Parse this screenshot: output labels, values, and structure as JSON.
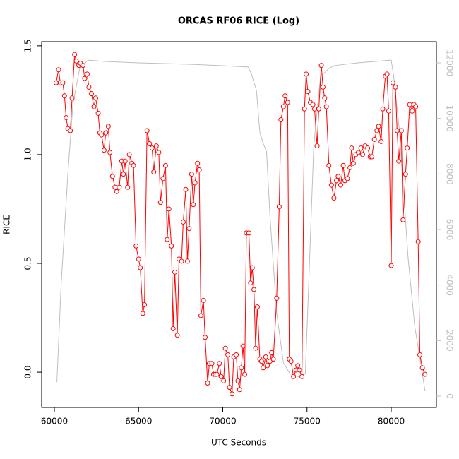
{
  "chart_data": {
    "type": "line",
    "title": "ORCAS RF06 RICE (Log)",
    "xlabel": "UTC Seconds",
    "ylabel": "RICE",
    "xlim": [
      59245,
      82683
    ],
    "ylim": [
      -0.162,
      1.519
    ],
    "y2lim": [
      -407,
      12763
    ],
    "xticks": [
      60000,
      65000,
      70000,
      75000,
      80000
    ],
    "yticks": [
      {
        "value": 0,
        "label": "0.0"
      },
      {
        "value": 0.5,
        "label": "0.5"
      },
      {
        "value": 1,
        "label": "1.0"
      },
      {
        "value": 1.5,
        "label": "1.5"
      }
    ],
    "y2ticks": [
      0,
      2000,
      4000,
      6000,
      8000,
      10000,
      12000
    ],
    "y2color": "#bebebe",
    "series": [
      {
        "color": "#ff0000",
        "markers": true,
        "x": [
          60100,
          60250,
          60350,
          60500,
          60600,
          60700,
          60800,
          60950,
          61050,
          61200,
          61300,
          61450,
          61550,
          61700,
          61800,
          61950,
          62050,
          62200,
          62350,
          62450,
          62600,
          62700,
          62800,
          62950,
          63050,
          63200,
          63300,
          63450,
          63600,
          63700,
          63850,
          64000,
          64100,
          64200,
          64350,
          64450,
          64600,
          64700,
          64850,
          65000,
          65100,
          65250,
          65350,
          65500,
          65650,
          65800,
          65900,
          66050,
          66200,
          66300,
          66450,
          66600,
          66700,
          66800,
          66950,
          67050,
          67150,
          67300,
          67400,
          67550,
          67650,
          67800,
          67900,
          68000,
          68150,
          68250,
          68350,
          68500,
          68600,
          68700,
          68850,
          68950,
          69100,
          69200,
          69350,
          69450,
          69550,
          69650,
          69800,
          69900,
          70050,
          70150,
          70300,
          70400,
          70550,
          70650,
          70800,
          70900,
          71000,
          71100,
          71200,
          71300,
          71400,
          71550,
          71650,
          71750,
          71850,
          71950,
          72050,
          72200,
          72300,
          72400,
          72550,
          72650,
          72800,
          72900,
          73000,
          73200,
          73350,
          73450,
          73600,
          73700,
          73850,
          73950,
          74050,
          74200,
          74350,
          74450,
          74550,
          74700,
          74850,
          74950,
          75050,
          75200,
          75350,
          75450,
          75600,
          75700,
          75850,
          75950,
          76050,
          76150,
          76300,
          76450,
          76600,
          76750,
          76850,
          77000,
          77150,
          77250,
          77400,
          77550,
          77650,
          77750,
          77900,
          78050,
          78200,
          78300,
          78450,
          78600,
          78750,
          78850,
          79000,
          79150,
          79250,
          79400,
          79500,
          79650,
          79750,
          79850,
          80000,
          80100,
          80250,
          80350,
          80450,
          80600,
          80700,
          80850,
          80950,
          81100,
          81250,
          81350,
          81450,
          81600,
          81700,
          81850,
          82000
        ],
        "values": [
          1.33,
          1.39,
          1.33,
          1.33,
          1.27,
          1.17,
          1.12,
          1.11,
          1.26,
          1.46,
          1.43,
          1.41,
          1.42,
          1.41,
          1.35,
          1.37,
          1.31,
          1.28,
          1.22,
          1.26,
          1.19,
          1.1,
          1.09,
          1.02,
          1.1,
          1.13,
          1.01,
          0.9,
          0.85,
          0.83,
          0.85,
          0.97,
          0.91,
          0.97,
          0.85,
          1.0,
          0.96,
          0.95,
          0.58,
          0.52,
          0.48,
          0.27,
          0.31,
          1.11,
          1.05,
          1.03,
          0.92,
          1.04,
          1.01,
          0.78,
          0.89,
          0.95,
          0.61,
          0.75,
          0.58,
          0.2,
          0.46,
          0.17,
          0.52,
          0.51,
          0.69,
          0.84,
          0.51,
          0.66,
          0.91,
          0.77,
          0.87,
          0.96,
          0.93,
          0.26,
          0.33,
          0.16,
          -0.05,
          0.04,
          0.04,
          -0.01,
          -0.01,
          -0.01,
          0.04,
          -0.02,
          -0.04,
          0.11,
          0.08,
          -0.07,
          -0.1,
          0.07,
          0.08,
          -0.04,
          -0.08,
          0.02,
          0.12,
          -0.01,
          0.64,
          0.64,
          0.41,
          0.48,
          0.38,
          0.11,
          0.3,
          0.06,
          0.05,
          0.02,
          0.07,
          0.03,
          0.05,
          0.09,
          0.06,
          0.34,
          0.76,
          1.16,
          1.22,
          1.27,
          1.24,
          0.06,
          0.05,
          -0.02,
          0.01,
          0.03,
          0.01,
          -0.02,
          1.21,
          1.37,
          1.29,
          1.24,
          1.23,
          1.21,
          1.04,
          1.21,
          1.41,
          1.31,
          1.26,
          1.22,
          0.95,
          0.86,
          0.8,
          0.88,
          0.9,
          0.86,
          0.95,
          0.88,
          0.89,
          0.94,
          1.03,
          0.96,
          1.0,
          1.01,
          1.03,
          1.0,
          1.04,
          1.03,
          0.99,
          0.99,
          1.07,
          1.11,
          1.13,
          1.06,
          1.21,
          1.36,
          1.37,
          1.2,
          0.49,
          1.33,
          1.31,
          1.11,
          0.97,
          1.11,
          0.7,
          0.91,
          1.03,
          1.23,
          1.2,
          1.23,
          1.22,
          0.6,
          0.08,
          0.02,
          -0.01
        ]
      },
      {
        "color": "#bebebe",
        "axis": "y2",
        "markers": false,
        "x": [
          60150,
          60400,
          60800,
          61100,
          61500,
          62000,
          63000,
          65000,
          68000,
          70000,
          71500,
          71700,
          72000,
          72200,
          72400,
          72600,
          72800,
          73200,
          73600,
          74000,
          74500,
          74900,
          75100,
          75400,
          75800,
          76300,
          76600,
          78000,
          80000,
          80150,
          80500,
          81000,
          81400,
          81800,
          82000
        ],
        "values": [
          500,
          4000,
          8000,
          10500,
          11800,
          12100,
          12050,
          12000,
          11950,
          11900,
          11850,
          11600,
          11000,
          9500,
          9100,
          8800,
          6500,
          3000,
          1200,
          800,
          700,
          800,
          4000,
          9000,
          11500,
          11800,
          11900,
          12000,
          12100,
          11500,
          9500,
          5000,
          2500,
          1000,
          200
        ]
      }
    ]
  }
}
